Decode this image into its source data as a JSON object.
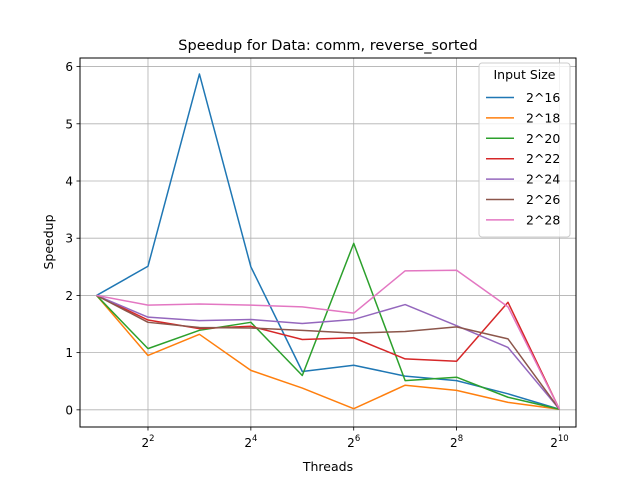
{
  "chart_data": {
    "type": "line",
    "title": "Speedup for Data: comm, reverse_sorted",
    "xlabel": "Threads",
    "ylabel": "Speedup",
    "x_scale": "log2",
    "x": [
      2,
      4,
      8,
      16,
      32,
      64,
      128,
      256,
      512,
      1024
    ],
    "xlim": [
      1.6,
      1280
    ],
    "ylim": [
      -0.3,
      6.15
    ],
    "x_ticks": [
      {
        "value": 4,
        "base": "2",
        "exp": "2"
      },
      {
        "value": 16,
        "base": "2",
        "exp": "4"
      },
      {
        "value": 64,
        "base": "2",
        "exp": "6"
      },
      {
        "value": 256,
        "base": "2",
        "exp": "8"
      },
      {
        "value": 1024,
        "base": "2",
        "exp": "10"
      }
    ],
    "y_ticks": [
      0,
      1,
      2,
      3,
      4,
      5,
      6
    ],
    "grid": true,
    "legend": {
      "title": "Input Size",
      "placement": "top-right"
    },
    "series": [
      {
        "name": "2^16",
        "color": "#1f77b4",
        "values": [
          2.0,
          2.51,
          5.87,
          2.5,
          0.67,
          0.78,
          0.59,
          0.51,
          0.28,
          0.01
        ]
      },
      {
        "name": "2^18",
        "color": "#ff7f0e",
        "values": [
          2.0,
          0.95,
          1.32,
          0.69,
          0.38,
          0.02,
          0.43,
          0.34,
          0.13,
          0.01
        ]
      },
      {
        "name": "2^20",
        "color": "#2ca02c",
        "values": [
          2.0,
          1.07,
          1.39,
          1.53,
          0.6,
          2.91,
          0.51,
          0.57,
          0.22,
          0.01
        ]
      },
      {
        "name": "2^22",
        "color": "#d62728",
        "values": [
          2.0,
          1.57,
          1.42,
          1.46,
          1.23,
          1.26,
          0.89,
          0.85,
          1.88,
          0.01
        ]
      },
      {
        "name": "2^24",
        "color": "#9467bd",
        "values": [
          2.0,
          1.62,
          1.56,
          1.58,
          1.51,
          1.58,
          1.84,
          1.47,
          1.09,
          0.01
        ]
      },
      {
        "name": "2^26",
        "color": "#8c564b",
        "values": [
          2.0,
          1.53,
          1.44,
          1.43,
          1.39,
          1.34,
          1.37,
          1.45,
          1.24,
          0.01
        ]
      },
      {
        "name": "2^28",
        "color": "#e377c2",
        "values": [
          2.0,
          1.83,
          1.85,
          1.83,
          1.8,
          1.69,
          2.43,
          2.44,
          1.8,
          0.01
        ]
      }
    ]
  }
}
